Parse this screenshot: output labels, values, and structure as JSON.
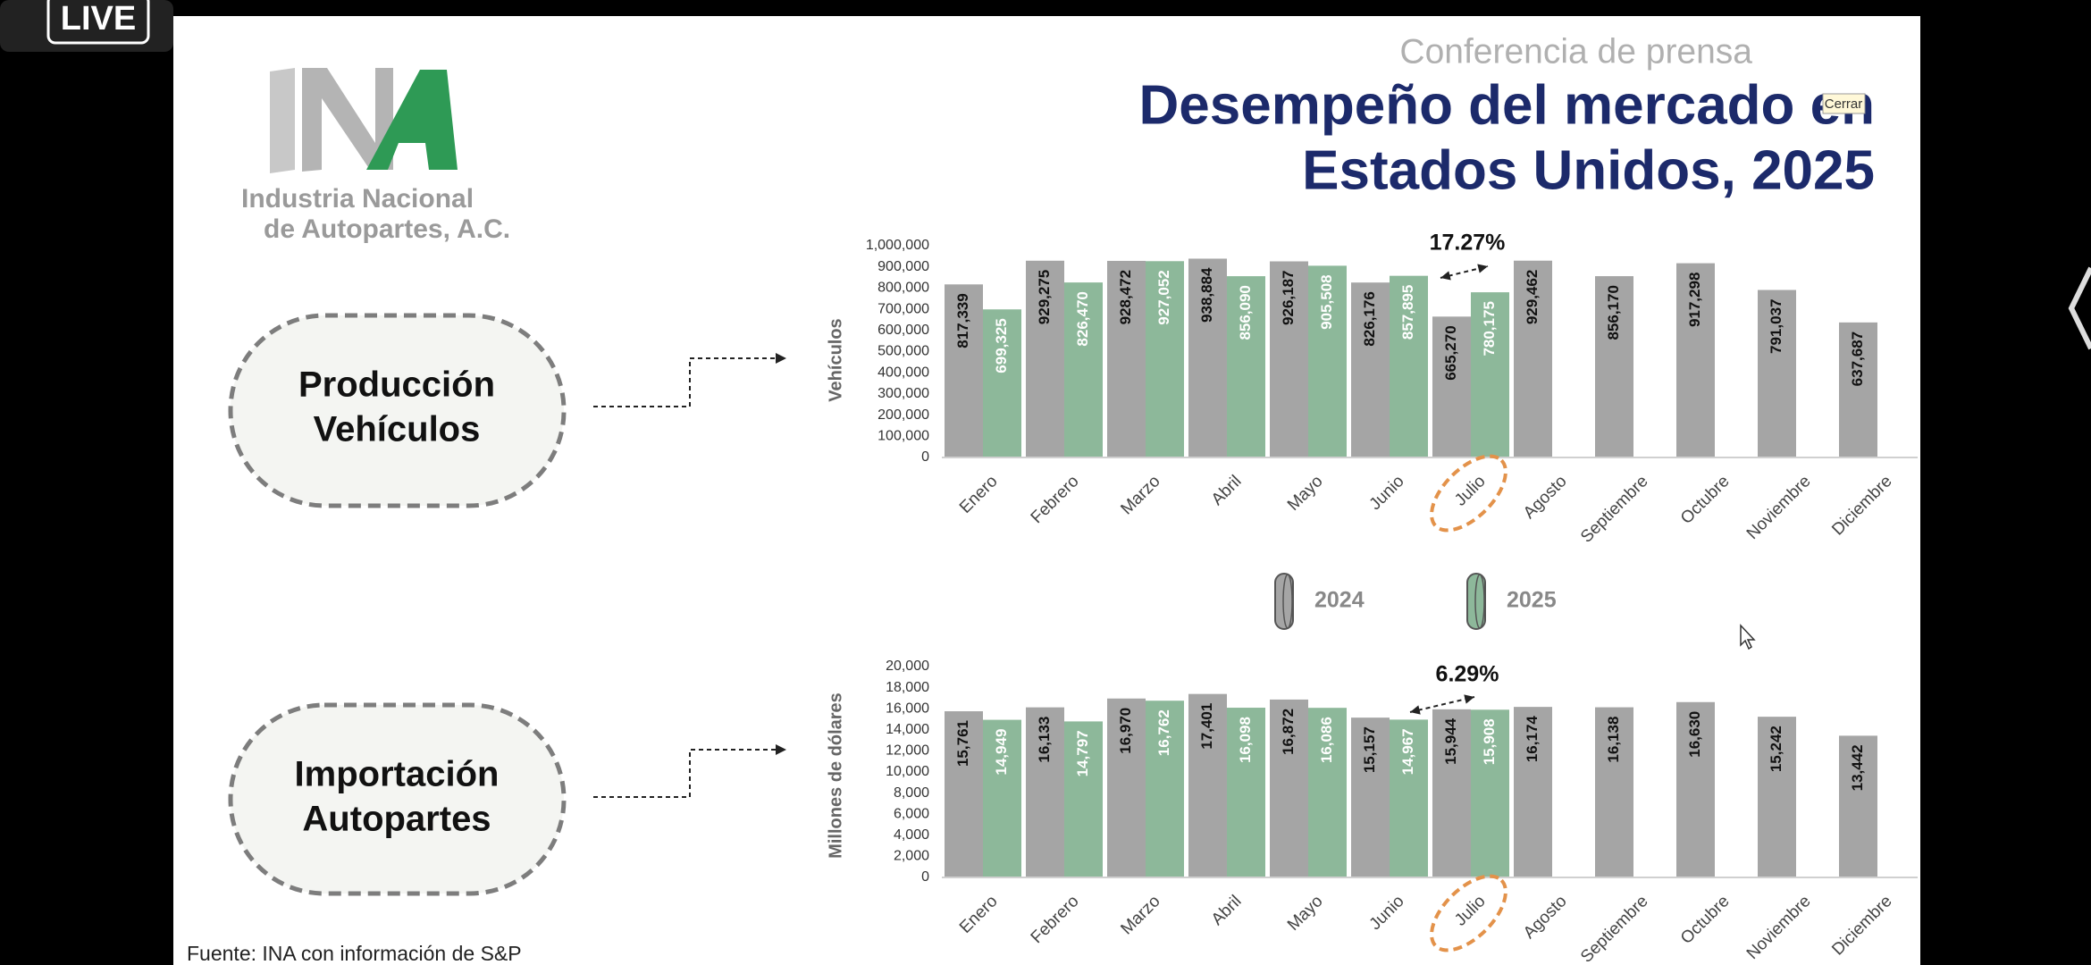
{
  "live": "LIVE",
  "tooltip": "Cerrar",
  "header": {
    "subtitle": "Conferencia de prensa",
    "title_lines": [
      "Desempeño del mercado en",
      "Estados Unidos, 2025"
    ]
  },
  "logo": {
    "lines": [
      "Industria Nacional",
      "de Autopartes, A.C."
    ]
  },
  "sections": [
    {
      "lines": [
        "Producción",
        "Vehículos"
      ]
    },
    {
      "lines": [
        "Importación",
        "Autopartes"
      ]
    }
  ],
  "source": "Fuente: INA con información de S&P",
  "chart_data": [
    {
      "type": "bar",
      "y_label": "Vehículos",
      "annotation": "17.27%",
      "categories": [
        "Enero",
        "Febrero",
        "Marzo",
        "Abril",
        "Mayo",
        "Junio",
        "Julio",
        "Agosto",
        "Septiembre",
        "Octubre",
        "Noviembre",
        "Diciembre"
      ],
      "series": [
        {
          "name": "2024",
          "color": "#a5a5a5",
          "values": [
            817339,
            929275,
            928472,
            938884,
            926187,
            826176,
            665270,
            929462,
            856170,
            917298,
            791037,
            637687
          ],
          "value_labels": [
            "817,339",
            "929,275",
            "928,472",
            "938,884",
            "926,187",
            "826,176",
            "665,270",
            "929,462",
            "856,170",
            "917,298",
            "791,037",
            "637,687"
          ]
        },
        {
          "name": "2025",
          "color": "#8db89a",
          "values": [
            699325,
            826470,
            927052,
            856090,
            905508,
            857895,
            780175,
            null,
            null,
            null,
            null,
            null
          ],
          "value_labels": [
            "699,325",
            "826,470",
            "927,052",
            "856,090",
            "905,508",
            "857,895",
            "780,175",
            null,
            null,
            null,
            null,
            null
          ]
        }
      ],
      "ylim": [
        0,
        1000000
      ],
      "yticks": [
        0,
        {
          "value": 100000,
          "label": "100,000"
        },
        {
          "value": 200000,
          "label": "200,000"
        },
        {
          "value": 300000,
          "label": "300,000"
        },
        {
          "value": 400000,
          "label": "400,000"
        },
        {
          "value": 500000,
          "label": "500,000"
        },
        {
          "value": 600000,
          "label": "600,000"
        },
        {
          "value": 700000,
          "label": "700,000"
        },
        {
          "value": 800000,
          "label": "800,000"
        },
        {
          "value": 900000,
          "label": "900,000"
        },
        {
          "value": 1000000,
          "label": "1,000,000"
        }
      ]
    },
    {
      "type": "bar",
      "y_label": "Millones de dólares",
      "annotation": "6.29%",
      "categories": [
        "Enero",
        "Febrero",
        "Marzo",
        "Abril",
        "Mayo",
        "Junio",
        "Julio",
        "Agosto",
        "Septiembre",
        "Octubre",
        "Noviembre",
        "Diciembre"
      ],
      "series": [
        {
          "color": "#a5a5a5",
          "values": [
            15761,
            16133,
            16970,
            17401,
            16872,
            15157,
            15944,
            16174,
            16138,
            16630,
            15242,
            13442
          ],
          "value_labels": [
            "15,761",
            "16,133",
            "16,970",
            "17,401",
            "16,872",
            "15,157",
            "15,944",
            "16,174",
            "16,138",
            "16,630",
            "15,242",
            "13,442"
          ]
        },
        {
          "color": "#8db89a",
          "values": [
            14949,
            14797,
            16762,
            16098,
            16086,
            14967,
            15908,
            null,
            null,
            null,
            null,
            null
          ],
          "value_labels": [
            "14,949",
            "14,797",
            "16,762",
            "16,098",
            "16,086",
            "14,967",
            "15,908",
            null,
            null,
            null,
            null,
            null
          ]
        }
      ],
      "ylim": [
        0,
        20000
      ],
      "yticks": [
        0,
        {
          "value": 2000,
          "label": "2,000"
        },
        {
          "value": 4000,
          "label": "4,000"
        },
        {
          "value": 6000,
          "label": "6,000"
        },
        {
          "value": 8000,
          "label": "8,000"
        },
        {
          "value": 10000,
          "label": "10,000"
        },
        {
          "value": 12000,
          "label": "12,000"
        },
        {
          "value": 14000,
          "label": "14,000"
        },
        {
          "value": 16000,
          "label": "16,000"
        },
        {
          "value": 18000,
          "label": "18,000"
        },
        {
          "value": 20000,
          "label": "20,000"
        }
      ]
    }
  ]
}
